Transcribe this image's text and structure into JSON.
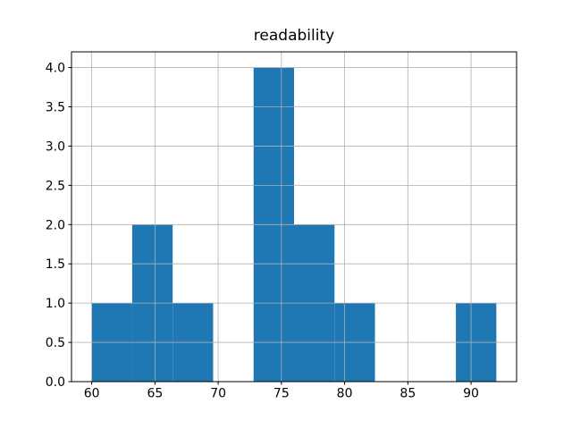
{
  "chart_data": {
    "type": "bar",
    "subtype": "histogram",
    "title": "readability",
    "xlabel": "",
    "ylabel": "",
    "bin_edges": [
      60.0,
      63.2,
      66.4,
      69.6,
      72.8,
      76.0,
      79.2,
      82.4,
      85.6,
      88.8,
      92.0
    ],
    "counts": [
      1,
      2,
      1,
      0,
      4,
      2,
      1,
      0,
      0,
      1
    ],
    "x_ticks": [
      60,
      65,
      70,
      75,
      80,
      85,
      90
    ],
    "y_ticks": [
      0.0,
      0.5,
      1.0,
      1.5,
      2.0,
      2.5,
      3.0,
      3.5,
      4.0
    ],
    "xlim": [
      58.4,
      93.6
    ],
    "ylim": [
      0.0,
      4.2
    ],
    "grid": true,
    "grid_on_top": true,
    "legend": "none",
    "bar_color": "#1f77b4",
    "grid_color": "#b0b0b0",
    "frame_color": "#000000",
    "background_color": "#ffffff"
  }
}
